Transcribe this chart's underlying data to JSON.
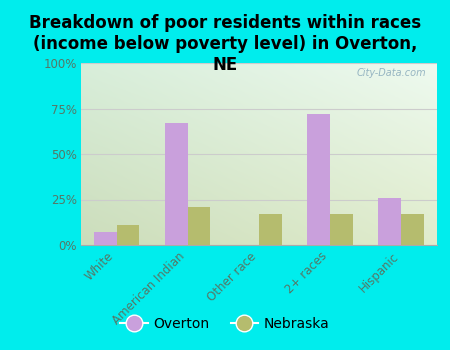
{
  "title": "Breakdown of poor residents within races\n(income below poverty level) in Overton,\nNE",
  "categories": [
    "White",
    "American Indian",
    "Other race",
    "2+ races",
    "Hispanic"
  ],
  "overton_values": [
    7,
    67,
    0,
    72,
    26
  ],
  "nebraska_values": [
    11,
    21,
    17,
    17,
    17
  ],
  "bar_color_overton": "#c9a0dc",
  "bar_color_nebraska": "#b5bc6e",
  "background_color": "#00eded",
  "plot_bg_top_left": "#d8eeda",
  "plot_bg_top_right": "#eefaf0",
  "plot_bg_bottom": "#dde8c0",
  "ylim": [
    0,
    100
  ],
  "yticks": [
    0,
    25,
    50,
    75,
    100
  ],
  "ytick_labels": [
    "0%",
    "25%",
    "50%",
    "75%",
    "100%"
  ],
  "ytick_color": "#557766",
  "xtick_color": "#557766",
  "legend_labels": [
    "Overton",
    "Nebraska"
  ],
  "watermark": "City-Data.com",
  "bar_width": 0.32,
  "title_fontsize": 12,
  "tick_fontsize": 8.5,
  "legend_fontsize": 10,
  "grid_color": "#cccccc",
  "bottom_line_color": "#aaaaaa"
}
